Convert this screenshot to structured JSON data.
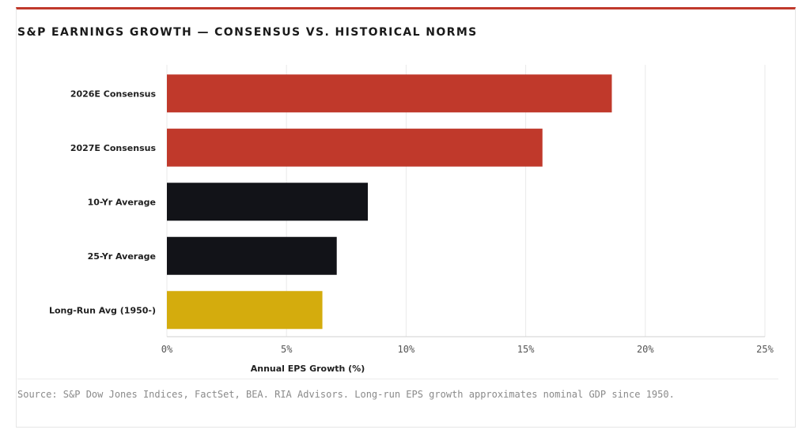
{
  "chart_data": {
    "type": "bar",
    "orientation": "horizontal",
    "title": "S&P EARNINGS GROWTH — CONSENSUS VS. HISTORICAL NORMS",
    "xlabel": "Annual EPS Growth (%)",
    "ylabel": "",
    "xlim": [
      0,
      25
    ],
    "x_ticks": [
      0,
      5,
      10,
      15,
      20,
      25
    ],
    "x_tick_labels": [
      "0%",
      "5%",
      "10%",
      "15%",
      "20%",
      "25%"
    ],
    "grid": true,
    "categories": [
      "2026E Consensus",
      "2027E Consensus",
      "10-Yr Average",
      "25-Yr Average",
      "Long-Run Avg (1950-)"
    ],
    "values": [
      18.6,
      15.7,
      8.4,
      7.1,
      6.5
    ],
    "colors": [
      "#c0392b",
      "#c0392b",
      "#121318",
      "#121318",
      "#d4ac0d"
    ]
  },
  "source_note": "Source: S&P Dow Jones Indices, FactSet, BEA. RIA Advisors. Long-run EPS growth approximates nominal GDP since 1950."
}
